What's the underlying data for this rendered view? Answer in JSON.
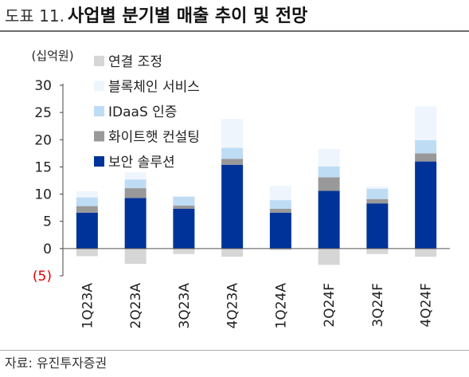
{
  "header": {
    "figure_label": "도표 11.",
    "title": "사업별 분기별 매출 추이 및 전망"
  },
  "source": "자료: 유진투자증권",
  "colors": {
    "security": "#003399",
    "consulting": "#999999",
    "idaas": "#bfdcf5",
    "blockchain": "#eef5fc",
    "consolidation": "#d6d6d6",
    "negative_tick": "#e00000"
  },
  "chart_data": {
    "type": "bar",
    "stacked": true,
    "unit_label": "(십억원)",
    "categories": [
      "1Q23A",
      "2Q23A",
      "3Q23A",
      "4Q23A",
      "1Q24A",
      "2Q24F",
      "3Q24F",
      "4Q24F"
    ],
    "series": [
      {
        "name": "보안 솔루션",
        "color": "#003399",
        "values": [
          6.6,
          9.3,
          7.3,
          15.4,
          6.6,
          10.6,
          8.3,
          16.0
        ]
      },
      {
        "name": "화이트햇 컨설팅",
        "color": "#999999",
        "values": [
          1.2,
          1.8,
          0.6,
          1.1,
          0.7,
          2.5,
          0.8,
          1.5
        ]
      },
      {
        "name": "IDaaS 인증",
        "color": "#bfdcf5",
        "values": [
          1.6,
          1.6,
          1.6,
          2.0,
          1.6,
          2.0,
          1.9,
          2.4
        ]
      },
      {
        "name": "블록체인 서비스",
        "color": "#eef5fc",
        "values": [
          1.1,
          1.3,
          0.2,
          5.3,
          2.6,
          3.2,
          0.4,
          6.2
        ]
      },
      {
        "name": "연결 조정",
        "color": "#d6d6d6",
        "values": [
          -1.4,
          -2.8,
          -1.0,
          -1.5,
          -0.3,
          -3.0,
          -1.0,
          -1.5
        ]
      }
    ],
    "legend_order": [
      "연결 조정",
      "블록체인 서비스",
      "IDaaS 인증",
      "화이트햇 컨설팅",
      "보안 솔루션"
    ],
    "yticks": [
      {
        "value": 30,
        "label": "30"
      },
      {
        "value": 25,
        "label": "25"
      },
      {
        "value": 20,
        "label": "20"
      },
      {
        "value": 15,
        "label": "15"
      },
      {
        "value": 10,
        "label": "10"
      },
      {
        "value": 5,
        "label": "5"
      },
      {
        "value": 0,
        "label": "0"
      },
      {
        "value": -5,
        "label": "(5)"
      }
    ],
    "ylim": [
      -5,
      30
    ],
    "grid": false,
    "legend_position": "top-left",
    "xlabel": "",
    "ylabel": ""
  }
}
